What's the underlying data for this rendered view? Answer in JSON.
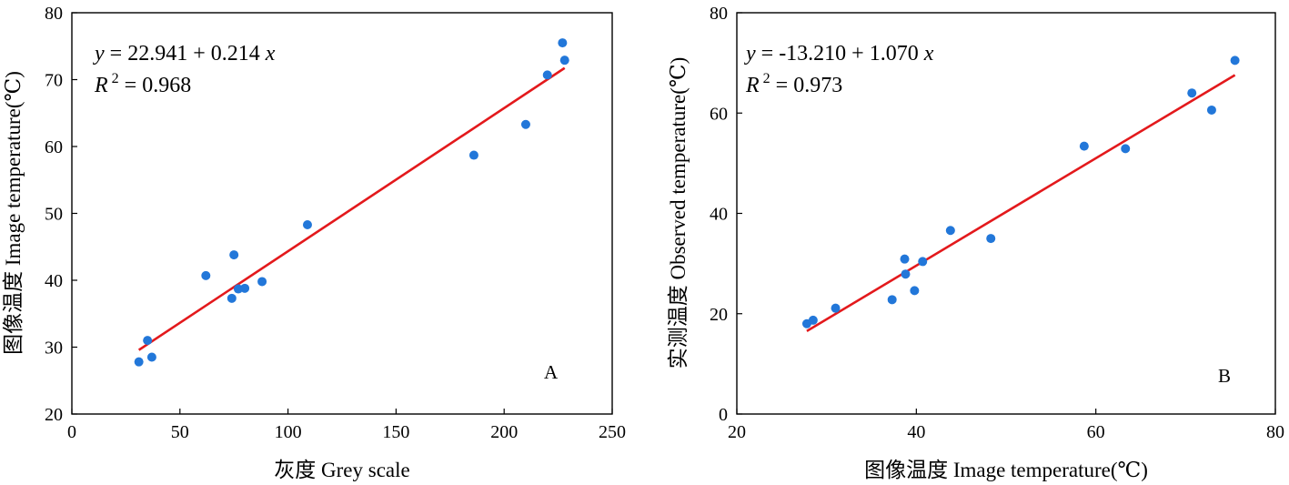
{
  "chart_data": [
    {
      "type": "scatter",
      "panel_label": "A",
      "xlabel": "灰度 Grey scale",
      "ylabel": "图像温度 Image temperature(℃)",
      "xlim": [
        0,
        250
      ],
      "ylim": [
        20,
        80
      ],
      "xticks": [
        0,
        50,
        100,
        150,
        200,
        250
      ],
      "yticks": [
        20,
        30,
        40,
        50,
        60,
        70,
        80
      ],
      "grid": false,
      "equation": "y = 22.941 + 0.214 x",
      "r_squared": "R 2 = 0.968",
      "fit": {
        "intercept": 22.941,
        "slope": 0.214,
        "x_range": [
          31,
          228
        ],
        "color": "#e3191c"
      },
      "point_color": "#2277d9",
      "points": [
        [
          31,
          27.8
        ],
        [
          35,
          31.0
        ],
        [
          37,
          28.5
        ],
        [
          62,
          40.7
        ],
        [
          74,
          37.3
        ],
        [
          75,
          43.8
        ],
        [
          77,
          38.7
        ],
        [
          80,
          38.8
        ],
        [
          88,
          39.8
        ],
        [
          109,
          48.3
        ],
        [
          186,
          58.7
        ],
        [
          210,
          63.3
        ],
        [
          220,
          70.7
        ],
        [
          227,
          75.5
        ],
        [
          228,
          72.9
        ]
      ]
    },
    {
      "type": "scatter",
      "panel_label": "B",
      "xlabel": "图像温度 Image temperature(℃)",
      "ylabel": "实测温度 Observed temperature(℃)",
      "xlim": [
        20,
        80
      ],
      "ylim": [
        0,
        80
      ],
      "xticks": [
        20,
        40,
        60,
        80
      ],
      "yticks": [
        0,
        20,
        40,
        60,
        80
      ],
      "grid": false,
      "equation": "y = -13.210 + 1.070 x",
      "r_squared": "R 2 = 0.973",
      "fit": {
        "intercept": -13.21,
        "slope": 1.07,
        "x_range": [
          27.8,
          75.5
        ],
        "color": "#e3191c"
      },
      "point_color": "#2277d9",
      "points": [
        [
          27.8,
          18.0
        ],
        [
          28.5,
          18.7
        ],
        [
          31.0,
          21.1
        ],
        [
          37.3,
          22.8
        ],
        [
          38.7,
          30.9
        ],
        [
          38.8,
          27.9
        ],
        [
          39.8,
          24.6
        ],
        [
          40.7,
          30.4
        ],
        [
          43.8,
          36.6
        ],
        [
          48.3,
          35.0
        ],
        [
          58.7,
          53.4
        ],
        [
          63.3,
          52.9
        ],
        [
          70.7,
          64.0
        ],
        [
          72.9,
          60.6
        ],
        [
          75.5,
          70.5
        ]
      ]
    }
  ]
}
